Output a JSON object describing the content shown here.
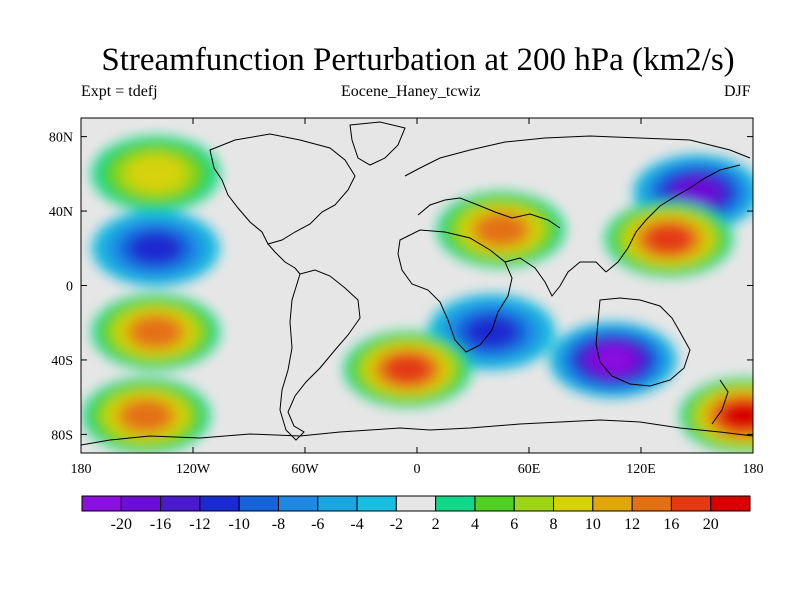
{
  "title": "Streamfunction Perturbation at 200 hPa (km2/s)",
  "left_string": "Expt = tdefj",
  "center_string": "Eocene_Haney_tcwiz",
  "right_string": "DJF",
  "chart_data": {
    "type": "heatmap",
    "projection": "cylindrical equidistant (global)",
    "variable": "streamfunction perturbation",
    "units": "km2/s",
    "level": "200 hPa",
    "season": "DJF",
    "lon_range": [
      -180,
      180
    ],
    "lat_range": [
      -90,
      90
    ],
    "x_ticks": [
      "180",
      "120W",
      "60W",
      "0",
      "60E",
      "120E",
      "180"
    ],
    "y_ticks": [
      "80N",
      "40N",
      "0",
      "40S",
      "80S"
    ],
    "y_tick_values": [
      80,
      40,
      0,
      -40,
      -80
    ],
    "colorbar": {
      "labels": [
        "-20",
        "-16",
        "-12",
        "-10",
        "-8",
        "-6",
        "-4",
        "-2",
        "2",
        "4",
        "6",
        "8",
        "10",
        "12",
        "16",
        "20"
      ],
      "colors": [
        "#8A11E0",
        "#6B0FD6",
        "#4A1ACC",
        "#1A2AD0",
        "#1664DB",
        "#1E88E5",
        "#1AA6E0",
        "#18BEE0",
        "#E6E6E6",
        "#10D888",
        "#50D020",
        "#9ED416",
        "#D6D20A",
        "#E0A60A",
        "#E47012",
        "#E43A14",
        "#D80000"
      ]
    },
    "features": [
      {
        "lon": 150,
        "lat": 50,
        "value": -16,
        "desc": "cyclonic center NW Pacific"
      },
      {
        "lon": -140,
        "lat": 20,
        "value": -10,
        "desc": "low over N Pacific subtropics"
      },
      {
        "lon": 105,
        "lat": -40,
        "value": -20,
        "desc": "strong low south of Australia/Indian Ocean"
      },
      {
        "lon": 40,
        "lat": -25,
        "value": -10,
        "desc": "low over SE Africa"
      },
      {
        "lon": 135,
        "lat": 25,
        "value": 16,
        "desc": "high over W Pacific"
      },
      {
        "lon": 45,
        "lat": 30,
        "value": 12,
        "desc": "high over Middle East"
      },
      {
        "lon": -5,
        "lat": -45,
        "value": 16,
        "desc": "high over S Atlantic"
      },
      {
        "lon": -140,
        "lat": -25,
        "value": 12,
        "desc": "high over S Pacific"
      },
      {
        "lon": -140,
        "lat": 60,
        "value": 8,
        "desc": "high over Gulf of Alaska"
      },
      {
        "lon": -145,
        "lat": -70,
        "value": 12,
        "desc": "high over Southern Ocean"
      },
      {
        "lon": 175,
        "lat": -70,
        "value": 20,
        "desc": "high near Ross Sea"
      }
    ]
  }
}
